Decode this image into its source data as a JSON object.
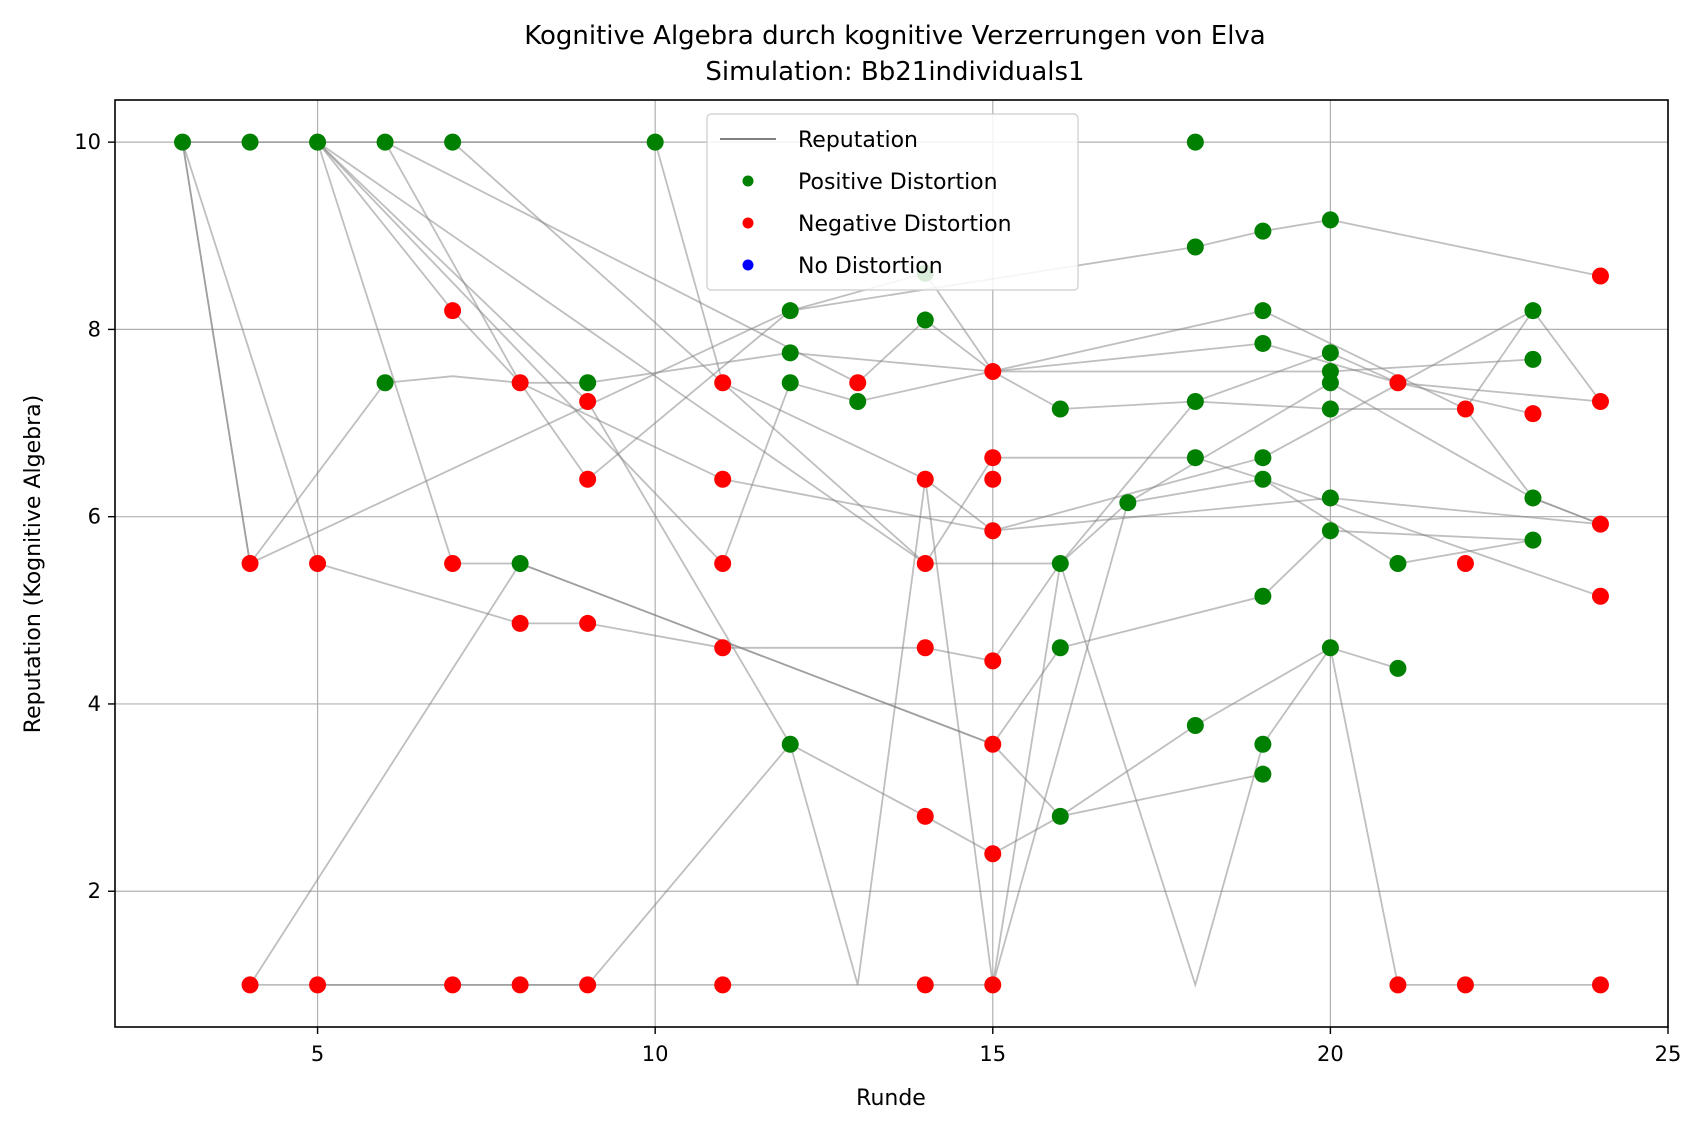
{
  "chart_data": {
    "type": "scatter",
    "title": "Kognitive Algebra durch kognitive Verzerrungen von Elva",
    "subtitle": "Simulation: Bb21individuals1",
    "xlabel": "Runde",
    "ylabel": "Reputation (Kognitive Algebra)",
    "xlim": [
      2,
      25
    ],
    "ylim": [
      0.55,
      10.45
    ],
    "xticks": [
      5,
      10,
      15,
      20,
      25
    ],
    "yticks": [
      2,
      4,
      6,
      8,
      10
    ],
    "grid": true,
    "legend_position": "top-center",
    "legend": [
      {
        "label": "Reputation",
        "kind": "line",
        "color": "#808080"
      },
      {
        "label": "Positive Distortion",
        "kind": "marker",
        "color": "#008000"
      },
      {
        "label": "Negative Distortion",
        "kind": "marker",
        "color": "#ff0000"
      },
      {
        "label": "No Distortion",
        "kind": "marker",
        "color": "#0000ff"
      }
    ],
    "colors": {
      "positive": "#008000",
      "negative": "#ff0000",
      "line": "#808080"
    },
    "paths": [
      [
        [
          3,
          10
        ],
        [
          4,
          5.5
        ],
        [
          6,
          7.43
        ],
        [
          7,
          7.5
        ],
        [
          8,
          7.43
        ],
        [
          9,
          7.43
        ],
        [
          12,
          7.75
        ],
        [
          15,
          7.55
        ],
        [
          20,
          7.55
        ],
        [
          23,
          7.68
        ]
      ],
      [
        [
          3,
          10
        ],
        [
          4,
          5.5
        ],
        [
          12,
          8.2
        ],
        [
          18,
          8.88
        ],
        [
          19,
          9.05
        ],
        [
          20,
          9.17
        ],
        [
          24,
          8.57
        ]
      ],
      [
        [
          3,
          10
        ],
        [
          5,
          5.5
        ],
        [
          8,
          4.86
        ],
        [
          9,
          4.86
        ],
        [
          11,
          4.6
        ],
        [
          14,
          4.6
        ],
        [
          15,
          4.46
        ],
        [
          16,
          5.5
        ],
        [
          17,
          6.15
        ],
        [
          19,
          6.4
        ],
        [
          24,
          5.15
        ]
      ],
      [
        [
          3,
          10
        ],
        [
          4,
          10
        ],
        [
          5,
          10
        ],
        [
          6,
          10
        ],
        [
          7,
          10
        ],
        [
          10,
          10
        ],
        [
          11,
          7.43
        ],
        [
          14,
          6.4
        ],
        [
          15,
          5.85
        ],
        [
          20,
          6.2
        ],
        [
          24,
          5.92
        ]
      ],
      [
        [
          5,
          10
        ],
        [
          7,
          8.2
        ],
        [
          8,
          7.43
        ],
        [
          11,
          6.4
        ],
        [
          15,
          5.85
        ],
        [
          19,
          6.63
        ],
        [
          23,
          8.2
        ],
        [
          24,
          7.23
        ]
      ],
      [
        [
          5,
          10
        ],
        [
          7,
          5.5
        ],
        [
          8,
          5.5
        ],
        [
          15,
          3.57
        ],
        [
          16,
          4.6
        ],
        [
          19,
          5.15
        ],
        [
          20,
          5.85
        ],
        [
          23,
          5.75
        ]
      ],
      [
        [
          5,
          10
        ],
        [
          9,
          7.23
        ],
        [
          12,
          3.57
        ],
        [
          14,
          2.8
        ],
        [
          15,
          2.4
        ],
        [
          16,
          2.8
        ],
        [
          18,
          3.77
        ],
        [
          20,
          4.6
        ],
        [
          21,
          4.38
        ]
      ],
      [
        [
          5,
          10
        ],
        [
          11,
          5.5
        ],
        [
          12,
          7.43
        ],
        [
          13,
          7.23
        ],
        [
          19,
          8.2
        ],
        [
          22,
          7.15
        ],
        [
          23,
          6.2
        ],
        [
          24,
          5.92
        ]
      ],
      [
        [
          5,
          10
        ],
        [
          14,
          5.5
        ],
        [
          15,
          6.63
        ],
        [
          18,
          6.63
        ],
        [
          19,
          6.4
        ],
        [
          21,
          5.5
        ],
        [
          23,
          5.75
        ]
      ],
      [
        [
          6,
          10
        ],
        [
          8,
          7.43
        ],
        [
          9,
          6.4
        ],
        [
          12,
          8.2
        ],
        [
          14,
          8.6
        ],
        [
          15,
          7.55
        ],
        [
          19,
          7.85
        ],
        [
          21,
          7.43
        ],
        [
          24,
          7.23
        ]
      ],
      [
        [
          6,
          10
        ],
        [
          13,
          7.43
        ],
        [
          14,
          8.1
        ],
        [
          15,
          7.55
        ],
        [
          16,
          7.15
        ],
        [
          18,
          7.23
        ],
        [
          20,
          7.75
        ],
        [
          21,
          7.43
        ],
        [
          23,
          7.1
        ]
      ],
      [
        [
          7,
          10
        ],
        [
          14,
          5.5
        ],
        [
          16,
          5.5
        ],
        [
          18,
          7.23
        ],
        [
          20,
          7.15
        ],
        [
          22,
          7.15
        ],
        [
          23,
          8.2
        ]
      ],
      [
        [
          4,
          1
        ],
        [
          8,
          5.5
        ],
        [
          15,
          3.57
        ],
        [
          16,
          2.8
        ],
        [
          19,
          3.25
        ]
      ],
      [
        [
          4,
          1
        ],
        [
          15,
          1
        ],
        [
          17,
          6.15
        ],
        [
          20,
          7.43
        ],
        [
          23,
          6.2
        ],
        [
          24,
          5.92
        ]
      ],
      [
        [
          5,
          1
        ],
        [
          9,
          1
        ],
        [
          12,
          3.57
        ],
        [
          13,
          1
        ],
        [
          14,
          6.4
        ],
        [
          15,
          1
        ],
        [
          16,
          5.5
        ],
        [
          18,
          1
        ],
        [
          19,
          3.57
        ],
        [
          20,
          4.6
        ],
        [
          21,
          1
        ],
        [
          22,
          1
        ],
        [
          24,
          1
        ]
      ]
    ],
    "positive_points": [
      [
        3,
        10
      ],
      [
        4,
        10
      ],
      [
        5,
        10
      ],
      [
        6,
        10
      ],
      [
        7,
        10
      ],
      [
        10,
        10
      ],
      [
        18,
        10
      ],
      [
        20,
        9.17
      ],
      [
        19,
        9.05
      ],
      [
        18,
        8.88
      ],
      [
        14,
        8.6
      ],
      [
        12,
        8.2
      ],
      [
        19,
        8.2
      ],
      [
        23,
        8.2
      ],
      [
        14,
        8.1
      ],
      [
        19,
        7.85
      ],
      [
        12,
        7.75
      ],
      [
        20,
        7.75
      ],
      [
        23,
        7.68
      ],
      [
        20,
        7.55
      ],
      [
        6,
        7.43
      ],
      [
        9,
        7.43
      ],
      [
        12,
        7.43
      ],
      [
        20,
        7.43
      ],
      [
        13,
        7.23
      ],
      [
        18,
        7.23
      ],
      [
        16,
        7.15
      ],
      [
        20,
        7.15
      ],
      [
        18,
        6.63
      ],
      [
        19,
        6.63
      ],
      [
        19,
        6.4
      ],
      [
        20,
        6.2
      ],
      [
        23,
        6.2
      ],
      [
        17,
        6.15
      ],
      [
        20,
        5.85
      ],
      [
        23,
        5.75
      ],
      [
        8,
        5.5
      ],
      [
        16,
        5.5
      ],
      [
        21,
        5.5
      ],
      [
        19,
        5.15
      ],
      [
        16,
        4.6
      ],
      [
        20,
        4.6
      ],
      [
        21,
        4.38
      ],
      [
        18,
        3.77
      ],
      [
        12,
        3.57
      ],
      [
        19,
        3.57
      ],
      [
        19,
        3.25
      ],
      [
        16,
        2.8
      ]
    ],
    "negative_points": [
      [
        24,
        8.57
      ],
      [
        7,
        8.2
      ],
      [
        15,
        7.55
      ],
      [
        8,
        7.43
      ],
      [
        11,
        7.43
      ],
      [
        13,
        7.43
      ],
      [
        21,
        7.43
      ],
      [
        9,
        7.23
      ],
      [
        24,
        7.23
      ],
      [
        22,
        7.15
      ],
      [
        23,
        7.1
      ],
      [
        15,
        6.63
      ],
      [
        9,
        6.4
      ],
      [
        11,
        6.4
      ],
      [
        14,
        6.4
      ],
      [
        15,
        6.4
      ],
      [
        24,
        5.92
      ],
      [
        15,
        5.85
      ],
      [
        4,
        5.5
      ],
      [
        5,
        5.5
      ],
      [
        7,
        5.5
      ],
      [
        11,
        5.5
      ],
      [
        14,
        5.5
      ],
      [
        22,
        5.5
      ],
      [
        24,
        5.15
      ],
      [
        8,
        4.86
      ],
      [
        9,
        4.86
      ],
      [
        11,
        4.6
      ],
      [
        14,
        4.6
      ],
      [
        15,
        4.46
      ],
      [
        15,
        3.57
      ],
      [
        14,
        2.8
      ],
      [
        15,
        2.4
      ],
      [
        4,
        1
      ],
      [
        5,
        1
      ],
      [
        7,
        1
      ],
      [
        8,
        1
      ],
      [
        9,
        1
      ],
      [
        11,
        1
      ],
      [
        14,
        1
      ],
      [
        15,
        1
      ],
      [
        21,
        1
      ],
      [
        22,
        1
      ],
      [
        24,
        1
      ]
    ]
  }
}
